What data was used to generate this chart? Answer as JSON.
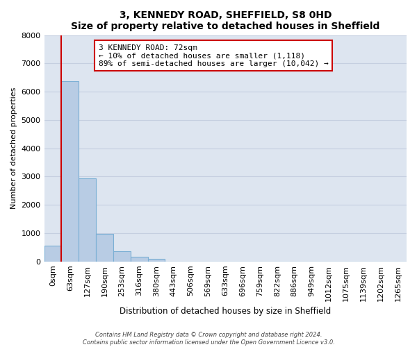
{
  "title": "3, KENNEDY ROAD, SHEFFIELD, S8 0HD",
  "subtitle": "Size of property relative to detached houses in Sheffield",
  "xlabel": "Distribution of detached houses by size in Sheffield",
  "ylabel": "Number of detached properties",
  "bar_values": [
    550,
    6380,
    2930,
    970,
    370,
    175,
    85,
    0,
    0,
    0,
    0,
    0,
    0,
    0,
    0,
    0,
    0,
    0,
    0,
    0,
    0
  ],
  "bar_labels": [
    "0sqm",
    "63sqm",
    "127sqm",
    "190sqm",
    "253sqm",
    "316sqm",
    "380sqm",
    "443sqm",
    "506sqm",
    "569sqm",
    "633sqm",
    "696sqm",
    "759sqm",
    "822sqm",
    "886sqm",
    "949sqm",
    "1012sqm",
    "1075sqm",
    "1139sqm",
    "1202sqm",
    "1265sqm"
  ],
  "bar_color": "#b8cce4",
  "bar_edge_color": "#7bafd4",
  "marker_color": "#cc0000",
  "marker_bar_index": 1,
  "ylim": [
    0,
    8000
  ],
  "yticks": [
    0,
    1000,
    2000,
    3000,
    4000,
    5000,
    6000,
    7000,
    8000
  ],
  "annotation_title": "3 KENNEDY ROAD: 72sqm",
  "annotation_line1": "← 10% of detached houses are smaller (1,118)",
  "annotation_line2": "89% of semi-detached houses are larger (10,042) →",
  "footer_line1": "Contains HM Land Registry data © Crown copyright and database right 2024.",
  "footer_line2": "Contains public sector information licensed under the Open Government Licence v3.0.",
  "background_color": "#ffffff",
  "plot_bg_color": "#dde5f0",
  "grid_color": "#c5cfe0"
}
